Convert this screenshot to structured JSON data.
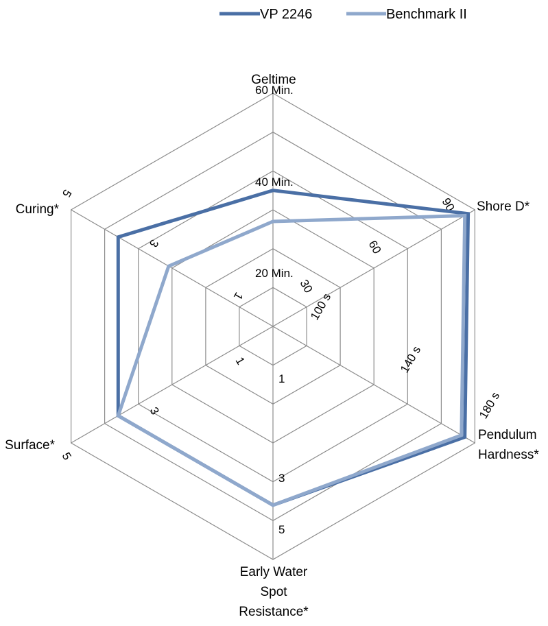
{
  "chart_data": {
    "type": "radar",
    "legend_position": "top",
    "grid": true,
    "axes": [
      {
        "name": "Geltime",
        "label_lines": [
          "Geltime"
        ],
        "ticks": [
          "20 Min.",
          "40 Min.",
          "60 Min."
        ]
      },
      {
        "name": "Shore D*",
        "label_lines": [
          "Shore D*"
        ],
        "ticks": [
          "30",
          "60",
          "90"
        ]
      },
      {
        "name": "Pendulum Hardness*",
        "label_lines": [
          "Pendulum",
          "Hardness*"
        ],
        "ticks": [
          "100 s",
          "140 s",
          "180 s"
        ]
      },
      {
        "name": "Early Water Spot Resistance*",
        "label_lines": [
          "Early Water",
          "Spot",
          "Resistance*"
        ],
        "ticks": [
          "1",
          "3",
          "5"
        ]
      },
      {
        "name": "Surface*",
        "label_lines": [
          "Surface*"
        ],
        "ticks": [
          "1",
          "3",
          "5"
        ]
      },
      {
        "name": "Curing*",
        "label_lines": [
          "Curing*"
        ],
        "ticks": [
          "1",
          "3",
          "5"
        ]
      }
    ],
    "series": [
      {
        "name": "VP 2246",
        "color": "#4a6fa5",
        "values": [
          3.5,
          5.8,
          5.7,
          4.6,
          4.6,
          4.6
        ]
      },
      {
        "name": "Benchmark II",
        "color": "#8fa8cc",
        "values": [
          2.7,
          5.7,
          5.6,
          4.6,
          4.6,
          3.1
        ]
      }
    ]
  }
}
